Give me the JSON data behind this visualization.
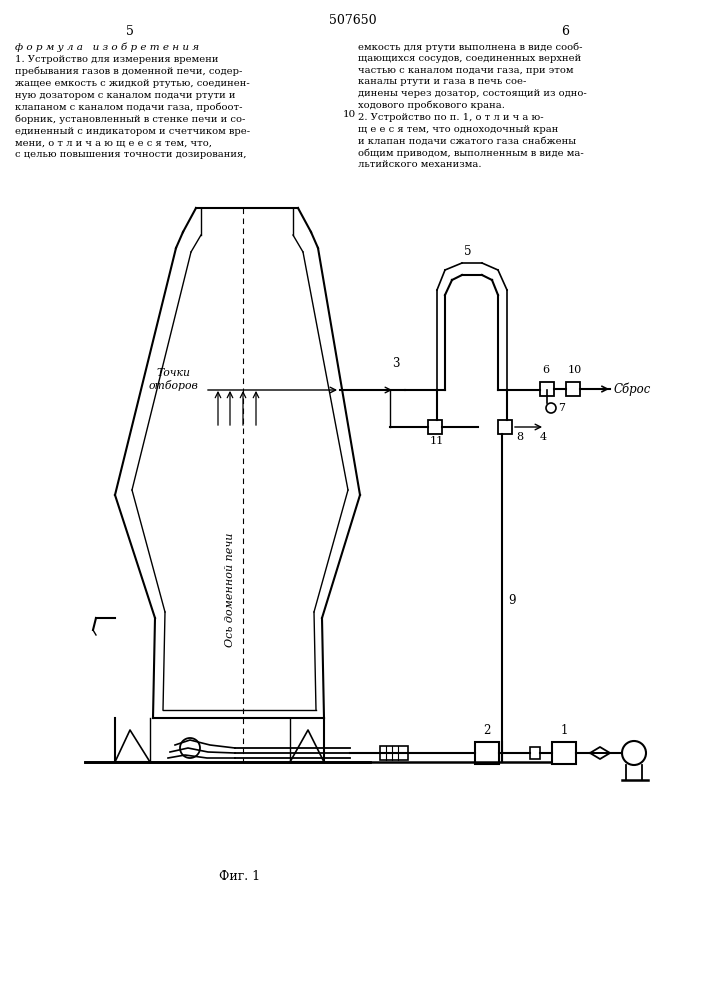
{
  "page_number_left": "5",
  "page_number_right": "6",
  "patent_number": "507650",
  "header_left": "ф о р м у л а   и з о б р е т е н и я",
  "fig_caption": "Фиг. 1",
  "background_color": "#ffffff",
  "text_color": "#000000",
  "line_color": "#000000"
}
